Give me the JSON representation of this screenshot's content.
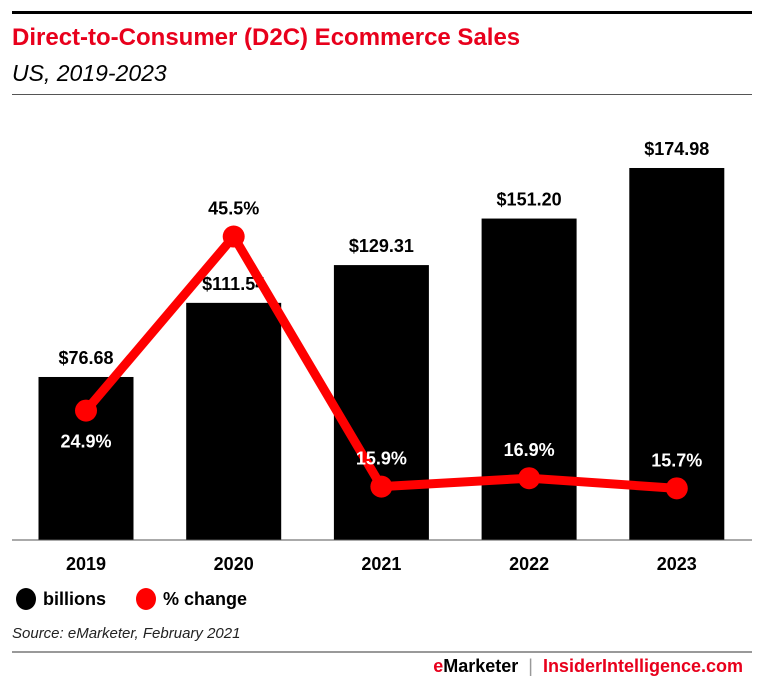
{
  "header": {
    "title": "Direct-to-Consumer (D2C) Ecommerce Sales",
    "subtitle": "US, 2019-2023"
  },
  "chart_data": {
    "type": "bar+line",
    "categories": [
      "2019",
      "2020",
      "2021",
      "2022",
      "2023"
    ],
    "series": [
      {
        "name": "billions",
        "type": "bar",
        "color": "#000000",
        "values": [
          76.68,
          111.54,
          129.31,
          151.2,
          174.98
        ],
        "labels": [
          "$76.68",
          "$111.54",
          "$129.31",
          "$151.20",
          "$174.98"
        ]
      },
      {
        "name": "% change",
        "type": "line",
        "color": "#ff0000",
        "values": [
          24.9,
          45.5,
          15.9,
          16.9,
          15.7
        ],
        "labels": [
          "24.9%",
          "45.5%",
          "15.9%",
          "16.9%",
          "15.7%"
        ]
      }
    ],
    "grid": false,
    "legend": "bottom-left"
  },
  "legend": {
    "items": [
      {
        "label": "billions",
        "color": "#000000"
      },
      {
        "label": "% change",
        "color": "#ff0000"
      }
    ]
  },
  "source": "Source: eMarketer, February 2021",
  "footer": {
    "brand_e": "e",
    "brand_rest": "Marketer",
    "separator": "|",
    "site": "InsiderIntelligence.com"
  }
}
